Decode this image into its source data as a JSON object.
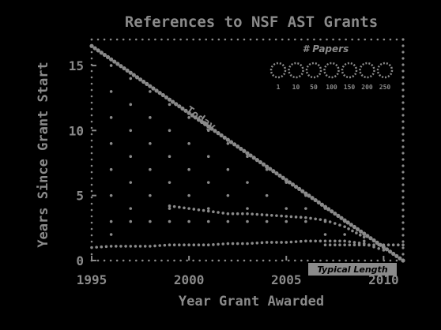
{
  "chart_data": {
    "type": "scatter",
    "title": "References to NSF AST Grants",
    "xlabel": "Year Grant Awarded",
    "ylabel": "Years Since Grant Start",
    "xlim": [
      1995,
      2011
    ],
    "ylim": [
      0,
      17
    ],
    "x_ticks": [
      "1995",
      "2000",
      "2005",
      "2010"
    ],
    "y_ticks": [
      "0",
      "5",
      "10",
      "15"
    ],
    "legend": {
      "title": "# Papers",
      "position": "top-right",
      "entries": [
        "1",
        "10",
        "50",
        "100",
        "150",
        "200",
        "250"
      ]
    },
    "annotations": [
      "Today",
      "Typical Length"
    ],
    "grid": false,
    "series": [
      {
        "role": "today-diagonal",
        "label": "Today",
        "x": [
          1995,
          2011
        ],
        "y": [
          16.5,
          0.0
        ]
      },
      {
        "role": "upper-trend",
        "x": [
          1999,
          2000,
          2001,
          2002,
          2003,
          2004,
          2005,
          2006,
          2007,
          2008,
          2009
        ],
        "y": [
          4.2,
          4.0,
          3.8,
          3.6,
          3.6,
          3.5,
          3.4,
          3.3,
          3.1,
          2.6,
          1.8
        ]
      },
      {
        "role": "lower-trend",
        "x": [
          1995,
          1996,
          1997,
          1998,
          1999,
          2000,
          2001,
          2002,
          2003,
          2004,
          2005,
          2006,
          2007,
          2008,
          2009,
          2010
        ],
        "y": [
          1.0,
          1.1,
          1.1,
          1.1,
          1.2,
          1.2,
          1.2,
          1.3,
          1.3,
          1.4,
          1.4,
          1.5,
          1.5,
          1.5,
          1.3,
          0.8
        ]
      },
      {
        "role": "typical-length",
        "label": "Typical Length",
        "x": [
          2007,
          2011
        ],
        "y": [
          1.2,
          1.2
        ]
      }
    ],
    "points": [
      [
        1996,
        15
      ],
      [
        1996,
        13
      ],
      [
        1996,
        11
      ],
      [
        1996,
        9
      ],
      [
        1996,
        7
      ],
      [
        1996,
        5
      ],
      [
        1996,
        3
      ],
      [
        1996,
        2
      ],
      [
        1997,
        14
      ],
      [
        1997,
        12
      ],
      [
        1997,
        10
      ],
      [
        1997,
        8
      ],
      [
        1997,
        6
      ],
      [
        1997,
        4
      ],
      [
        1997,
        3
      ],
      [
        1998,
        13
      ],
      [
        1998,
        11
      ],
      [
        1998,
        9
      ],
      [
        1998,
        7
      ],
      [
        1998,
        5
      ],
      [
        1998,
        3
      ],
      [
        1999,
        12
      ],
      [
        1999,
        10
      ],
      [
        1999,
        8
      ],
      [
        1999,
        6
      ],
      [
        1999,
        4
      ],
      [
        1999,
        3
      ],
      [
        2000,
        11
      ],
      [
        2000,
        9
      ],
      [
        2000,
        7
      ],
      [
        2000,
        5
      ],
      [
        2000,
        3
      ],
      [
        2001,
        10
      ],
      [
        2001,
        8
      ],
      [
        2001,
        6
      ],
      [
        2001,
        4
      ],
      [
        2001,
        3
      ],
      [
        2002,
        9
      ],
      [
        2002,
        7
      ],
      [
        2002,
        5
      ],
      [
        2002,
        3
      ],
      [
        2003,
        8
      ],
      [
        2003,
        6
      ],
      [
        2003,
        4
      ],
      [
        2003,
        3
      ],
      [
        2004,
        7
      ],
      [
        2004,
        5
      ],
      [
        2004,
        3
      ],
      [
        2005,
        6
      ],
      [
        2005,
        4
      ],
      [
        2005,
        3
      ],
      [
        2006,
        5
      ],
      [
        2006,
        4
      ],
      [
        2006,
        3
      ],
      [
        2007,
        4
      ],
      [
        2007,
        3
      ],
      [
        2007,
        2
      ],
      [
        2008,
        3
      ],
      [
        2008,
        2
      ],
      [
        2009,
        2
      ],
      [
        2009,
        1.5
      ]
    ]
  },
  "colors": {
    "background": "#000000",
    "ink": "#8a8a8a"
  }
}
